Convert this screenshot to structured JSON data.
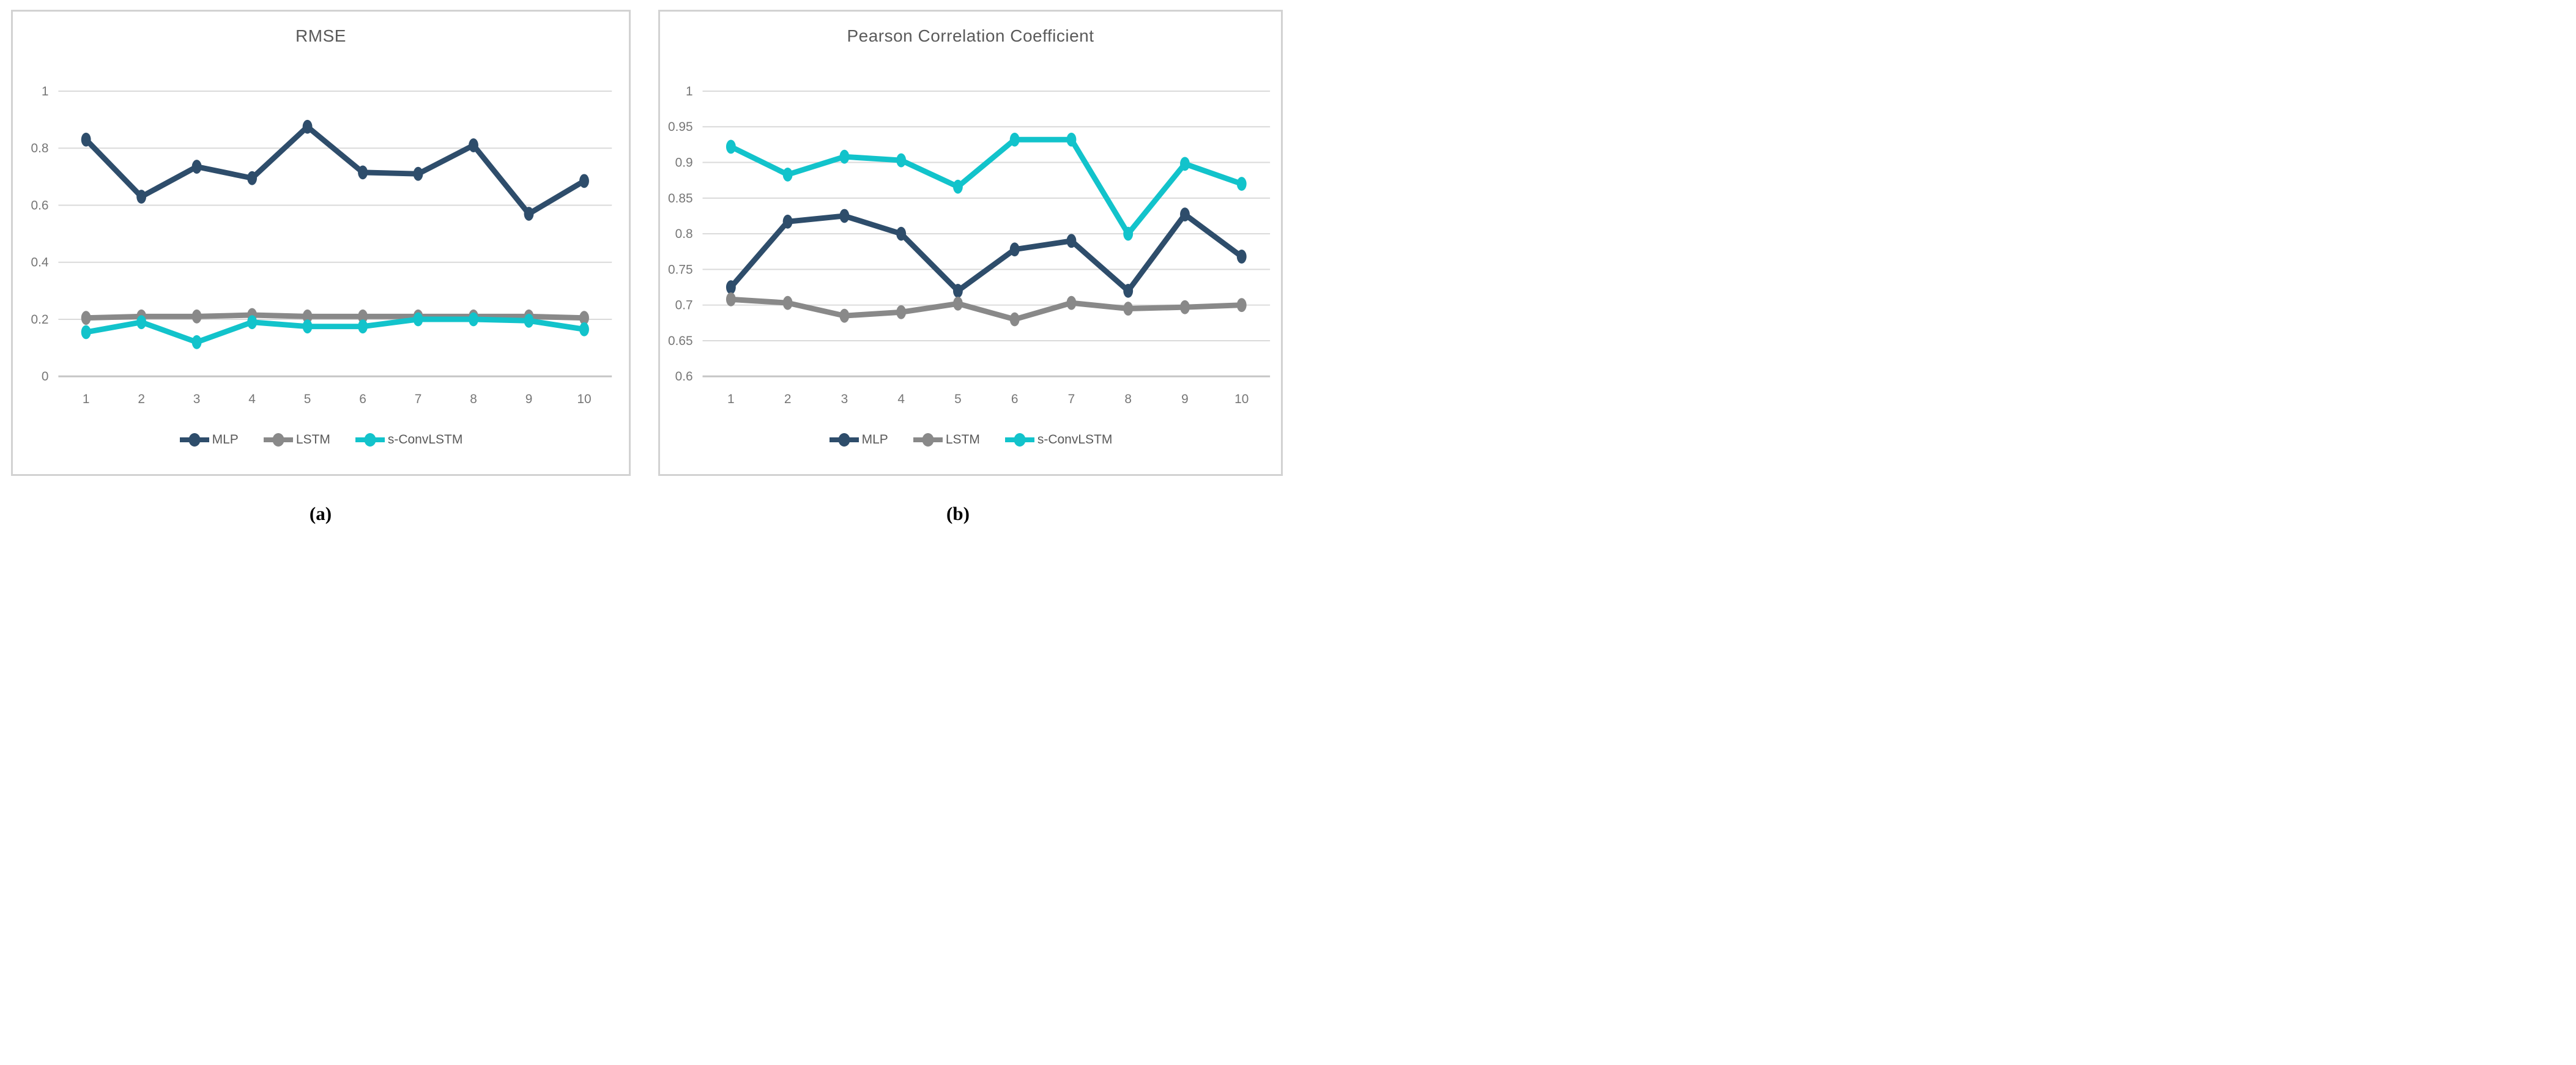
{
  "figure": {
    "caption_a": "(a)",
    "caption_b": "(b)"
  },
  "colors": {
    "mlp": "#2e4d6b",
    "lstm": "#898989",
    "s_convlstm": "#12c3cb",
    "gridline": "#dadada",
    "axis_line": "#c6c6c6",
    "tick_label": "#767676",
    "title": "#5a5a5a",
    "panel_border": "#d2d2d2"
  },
  "legend_labels": [
    "MLP",
    "LSTM",
    "s-ConvLSTM"
  ],
  "chart_data": [
    {
      "type": "line",
      "title": "RMSE",
      "categories": [
        "1",
        "2",
        "3",
        "4",
        "5",
        "6",
        "7",
        "8",
        "9",
        "10"
      ],
      "xlabel": "",
      "ylabel": "",
      "ylim": [
        0,
        1
      ],
      "grid": true,
      "legend_position": "bottom",
      "yticks": [
        {
          "value": 1,
          "label": "1"
        },
        {
          "value": 0.8,
          "label": "0.8"
        },
        {
          "value": 0.6,
          "label": "0.6"
        },
        {
          "value": 0.4,
          "label": "0.4"
        },
        {
          "value": 0.2,
          "label": "0.2"
        },
        {
          "value": 0,
          "label": "0"
        }
      ],
      "series": [
        {
          "name": "MLP",
          "color_key": "mlp",
          "values": [
            0.83,
            0.63,
            0.735,
            0.695,
            0.875,
            0.715,
            0.71,
            0.81,
            0.57,
            0.685
          ]
        },
        {
          "name": "LSTM",
          "color_key": "lstm",
          "values": [
            0.205,
            0.21,
            0.21,
            0.215,
            0.21,
            0.21,
            0.21,
            0.21,
            0.21,
            0.205
          ]
        },
        {
          "name": "s-ConvLSTM",
          "color_key": "s_convlstm",
          "values": [
            0.155,
            0.19,
            0.12,
            0.19,
            0.175,
            0.175,
            0.2,
            0.2,
            0.195,
            0.165
          ]
        }
      ]
    },
    {
      "type": "line",
      "title": "Pearson Correlation Coefficient",
      "categories": [
        "1",
        "2",
        "3",
        "4",
        "5",
        "6",
        "7",
        "8",
        "9",
        "10"
      ],
      "xlabel": "",
      "ylabel": "",
      "ylim": [
        0.6,
        1
      ],
      "grid": true,
      "legend_position": "bottom",
      "yticks": [
        {
          "value": 1,
          "label": "1"
        },
        {
          "value": 0.95,
          "label": "0.95"
        },
        {
          "value": 0.9,
          "label": "0.9"
        },
        {
          "value": 0.85,
          "label": "0.85"
        },
        {
          "value": 0.8,
          "label": "0.8"
        },
        {
          "value": 0.75,
          "label": "0.75"
        },
        {
          "value": 0.7,
          "label": "0.7"
        },
        {
          "value": 0.65,
          "label": "0.65"
        },
        {
          "value": 0.6,
          "label": "0.6"
        }
      ],
      "series": [
        {
          "name": "MLP",
          "color_key": "mlp",
          "values": [
            0.725,
            0.817,
            0.825,
            0.8,
            0.72,
            0.778,
            0.79,
            0.72,
            0.827,
            0.768
          ]
        },
        {
          "name": "LSTM",
          "color_key": "lstm",
          "values": [
            0.708,
            0.703,
            0.685,
            0.69,
            0.702,
            0.68,
            0.703,
            0.695,
            0.697,
            0.7
          ]
        },
        {
          "name": "s-ConvLSTM",
          "color_key": "s_convlstm",
          "values": [
            0.922,
            0.883,
            0.908,
            0.903,
            0.866,
            0.932,
            0.932,
            0.8,
            0.898,
            0.87
          ]
        }
      ]
    }
  ]
}
